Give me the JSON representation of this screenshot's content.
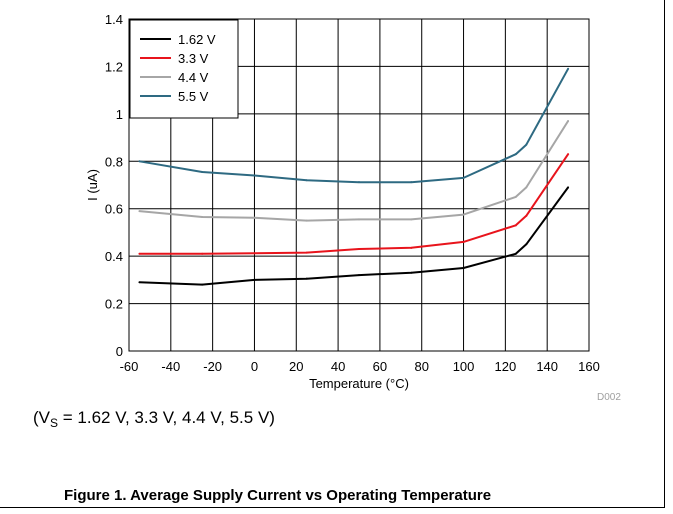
{
  "chart_data": {
    "type": "line",
    "title": "",
    "xlabel": "Temperature (°C)",
    "ylabel": "I (uA)",
    "xlim": [
      -60,
      160
    ],
    "ylim": [
      0,
      1.4
    ],
    "xticks": [
      -60,
      -40,
      -20,
      0,
      20,
      40,
      60,
      80,
      100,
      120,
      140,
      160
    ],
    "yticks": [
      0,
      0.2,
      0.4,
      0.6,
      0.8,
      1,
      1.2,
      1.4
    ],
    "xtick_labels": [
      "-60",
      "-40",
      "-20",
      "0",
      "20",
      "40",
      "60",
      "80",
      "100",
      "120",
      "140",
      "160"
    ],
    "ytick_labels": [
      "0",
      "0.2",
      "0.4",
      "0.6",
      "0.8",
      "1",
      "1.2",
      "1.4"
    ],
    "grid": true,
    "legend_position": "top-left",
    "series": [
      {
        "name": "1.62 V",
        "color": "#000000",
        "x": [
          -55,
          -25,
          0,
          25,
          50,
          75,
          100,
          125,
          130,
          150
        ],
        "y": [
          0.29,
          0.28,
          0.3,
          0.305,
          0.32,
          0.33,
          0.35,
          0.41,
          0.45,
          0.69
        ]
      },
      {
        "name": "3.3 V",
        "color": "#e8141c",
        "x": [
          -55,
          -25,
          0,
          25,
          50,
          75,
          100,
          125,
          130,
          150
        ],
        "y": [
          0.41,
          0.41,
          0.412,
          0.415,
          0.43,
          0.435,
          0.46,
          0.53,
          0.57,
          0.83
        ]
      },
      {
        "name": "4.4 V",
        "color": "#a6a6a6",
        "x": [
          -55,
          -25,
          0,
          25,
          50,
          75,
          100,
          125,
          130,
          150
        ],
        "y": [
          0.59,
          0.565,
          0.562,
          0.55,
          0.555,
          0.555,
          0.575,
          0.65,
          0.69,
          0.97
        ]
      },
      {
        "name": "5.5 V",
        "color": "#2e6a82",
        "x": [
          -55,
          -25,
          0,
          25,
          50,
          75,
          100,
          125,
          130,
          150
        ],
        "y": [
          0.8,
          0.755,
          0.74,
          0.72,
          0.712,
          0.712,
          0.73,
          0.83,
          0.87,
          1.19
        ]
      }
    ]
  },
  "figure_code": "D002",
  "conditions": {
    "prefix": "(V",
    "subscript": "S",
    "suffix": " = 1.62 V, 3.3 V, 4.4 V, 5.5 V)"
  },
  "caption": "Figure 1. Average Supply Current vs Operating Temperature"
}
